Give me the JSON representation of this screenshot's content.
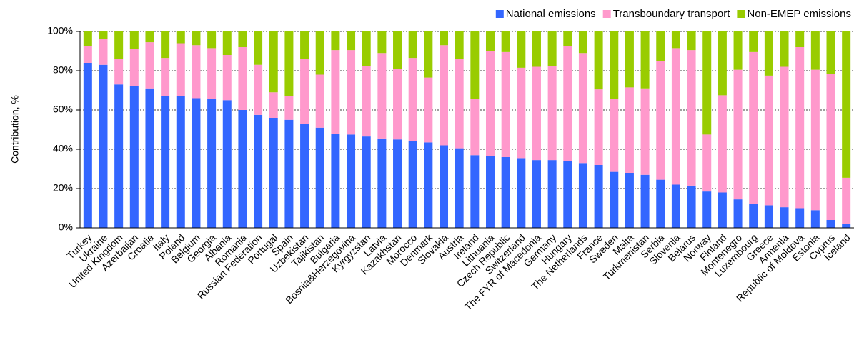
{
  "chart_data": {
    "type": "stacked_bar",
    "y_label": "Contribution, %",
    "categories": [
      "Turkey",
      "Ukraine",
      "United Kingdom",
      "Azerbaijan",
      "Croatia",
      "Italy",
      "Poland",
      "Belgium",
      "Georgia",
      "Albania",
      "Romania",
      "Russian Federation",
      "Portugal",
      "Spain",
      "Uzbekistan",
      "Tajikistan",
      "Bulgaria",
      "Bosnia&Herzegovina",
      "Kyrgyzstan",
      "Latvia",
      "Kazakhstan",
      "Morocco",
      "Denmark",
      "Slovakia",
      "Austria",
      "Ireland",
      "Lithuania",
      "Czech Republic",
      "Switzerland",
      "The FYR of Macedonia",
      "Germany",
      "Hungary",
      "The Netherlands",
      "France",
      "Sweden",
      "Malta",
      "Turkmenistan",
      "Serbia",
      "Slovenia",
      "Belarus",
      "Norway",
      "Finland",
      "Montenegro",
      "Luxembourg",
      "Greece",
      "Armenia",
      "Republic of Moldova",
      "Estonia",
      "Cyprus",
      "Iceland"
    ],
    "series": [
      {
        "name": "National emissions",
        "color": "#3366ff",
        "values": [
          84,
          83,
          73,
          72,
          71,
          67,
          67,
          66,
          65.5,
          65,
          60,
          57.5,
          56,
          55,
          53,
          51,
          48,
          47.5,
          46.5,
          45.5,
          45,
          44,
          43.5,
          42,
          40.5,
          37,
          36.5,
          36,
          35.5,
          34.5,
          34.5,
          34,
          33,
          32,
          28.5,
          28,
          27,
          24.5,
          22,
          21.5,
          18.5,
          18,
          14.5,
          12,
          11.5,
          10.5,
          10,
          9,
          4,
          2
        ]
      },
      {
        "name": "Transboundary transport",
        "color": "#ff99cc",
        "values": [
          8.5,
          13,
          13,
          19,
          23.5,
          19.5,
          27,
          27,
          26,
          23,
          32,
          25.5,
          13,
          12,
          33,
          27,
          42.5,
          43,
          36,
          43.5,
          36,
          42.5,
          33,
          51,
          45.5,
          28.5,
          53.5,
          53.5,
          46,
          47.5,
          48,
          58.5,
          56,
          38.5,
          37,
          43.5,
          44,
          60.5,
          69.5,
          69,
          29,
          49.5,
          66,
          77.5,
          66,
          71.5,
          82,
          71.5,
          74.5,
          23.5
        ]
      },
      {
        "name": "Non-EMEP emissions",
        "color": "#99cc00",
        "values": [
          7.5,
          4,
          14,
          9,
          5.5,
          13.5,
          6,
          7,
          8.5,
          12,
          8,
          17,
          31,
          33,
          14,
          22,
          9.5,
          9.5,
          17.5,
          11,
          19,
          13.5,
          23.5,
          7,
          14,
          34.5,
          10,
          10.5,
          18.5,
          18,
          17.5,
          7.5,
          11,
          29.5,
          34.5,
          28.5,
          29,
          15,
          8.5,
          9.5,
          52.5,
          32.5,
          19.5,
          10.5,
          22.5,
          18,
          8,
          19.5,
          21.5,
          74.5
        ]
      }
    ],
    "ylim": [
      0,
      100
    ],
    "yticks": [
      {
        "value": 0,
        "label": "0%"
      },
      {
        "value": 20,
        "label": "20%"
      },
      {
        "value": 40,
        "label": "40%"
      },
      {
        "value": 60,
        "label": "60%"
      },
      {
        "value": 80,
        "label": "80%"
      },
      {
        "value": 100,
        "label": "100%"
      }
    ],
    "grid": true,
    "legend": "upper right"
  }
}
